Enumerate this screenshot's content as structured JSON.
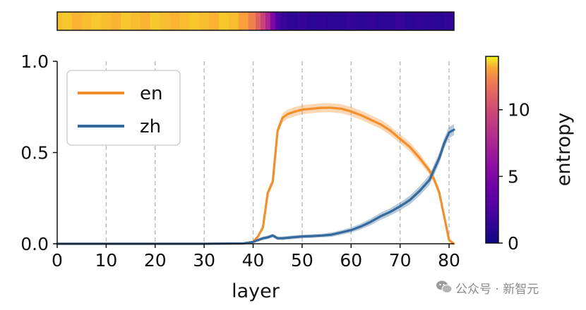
{
  "chart_data": [
    {
      "type": "heatmap",
      "description_role": "entropy strip over layers",
      "x": [
        0,
        2,
        4,
        6,
        8,
        10,
        12,
        14,
        16,
        18,
        20,
        22,
        24,
        26,
        28,
        30,
        32,
        34,
        36,
        38,
        40,
        41,
        42,
        43,
        44,
        45,
        46,
        48,
        50,
        52,
        54,
        56,
        58,
        60,
        62,
        64,
        66,
        68,
        70,
        72,
        74,
        76,
        78,
        80
      ],
      "values": [
        13.4,
        13.5,
        13.3,
        13.4,
        13.5,
        13.4,
        13.3,
        13.5,
        13.4,
        13.3,
        13.5,
        13.4,
        13.3,
        13.4,
        13.5,
        13.4,
        13.3,
        13.5,
        13.4,
        13.0,
        12.2,
        11.0,
        9.5,
        7.5,
        5.0,
        2.5,
        1.6,
        1.3,
        1.5,
        1.2,
        1.4,
        1.1,
        1.3,
        1.5,
        1.2,
        1.4,
        1.1,
        1.3,
        1.6,
        1.2,
        1.4,
        1.3,
        1.1,
        1.4
      ],
      "colorbar": {
        "label": "entropy",
        "ticks": [
          0,
          5,
          10
        ],
        "tick_labels": [
          "0",
          "5",
          "10"
        ],
        "range": [
          0,
          14
        ],
        "colormap": "plasma"
      }
    },
    {
      "type": "line",
      "xlabel": "layer",
      "ylabel": "",
      "xlim": [
        0,
        81
      ],
      "ylim": [
        0,
        1.0
      ],
      "xticks": [
        0,
        10,
        20,
        30,
        40,
        50,
        60,
        70,
        80
      ],
      "xtick_labels": [
        "0",
        "10",
        "20",
        "30",
        "40",
        "50",
        "60",
        "70",
        "80"
      ],
      "yticks": [
        0.0,
        0.5,
        1.0
      ],
      "ytick_labels": [
        "0.0",
        "0.5",
        "1.0"
      ],
      "vertical_grid": true,
      "legend_position": "top-left",
      "series": [
        {
          "name": "en",
          "color": "#f28e2b",
          "x": [
            0,
            10,
            20,
            30,
            38,
            40,
            41,
            42,
            43,
            44,
            45,
            46,
            47,
            48,
            50,
            52,
            54,
            56,
            58,
            60,
            62,
            64,
            66,
            68,
            70,
            72,
            74,
            76,
            77,
            78,
            79,
            80,
            81
          ],
          "y": [
            0,
            0,
            0,
            0,
            0.002,
            0.01,
            0.04,
            0.09,
            0.28,
            0.34,
            0.62,
            0.69,
            0.71,
            0.72,
            0.735,
            0.74,
            0.745,
            0.745,
            0.74,
            0.725,
            0.705,
            0.68,
            0.655,
            0.62,
            0.575,
            0.53,
            0.47,
            0.4,
            0.35,
            0.28,
            0.15,
            0.02,
            0.0
          ],
          "band": [
            0,
            0,
            0,
            0,
            0.002,
            0.005,
            0.01,
            0.015,
            0.02,
            0.02,
            0.02,
            0.025,
            0.025,
            0.025,
            0.025,
            0.025,
            0.025,
            0.025,
            0.025,
            0.025,
            0.025,
            0.025,
            0.025,
            0.025,
            0.025,
            0.025,
            0.025,
            0.02,
            0.02,
            0.02,
            0.015,
            0.01,
            0.005
          ]
        },
        {
          "name": "zh",
          "color": "#35689b",
          "x": [
            0,
            10,
            20,
            30,
            38,
            40,
            41,
            42,
            43,
            44,
            45,
            46,
            48,
            50,
            52,
            54,
            56,
            58,
            60,
            62,
            64,
            66,
            68,
            70,
            72,
            74,
            76,
            77,
            78,
            79,
            80,
            81
          ],
          "y": [
            0,
            0,
            0,
            0,
            0.002,
            0.01,
            0.02,
            0.03,
            0.035,
            0.045,
            0.03,
            0.03,
            0.035,
            0.04,
            0.042,
            0.045,
            0.05,
            0.062,
            0.075,
            0.095,
            0.12,
            0.15,
            0.175,
            0.205,
            0.24,
            0.29,
            0.35,
            0.41,
            0.47,
            0.55,
            0.61,
            0.625
          ],
          "band": [
            0,
            0,
            0,
            0,
            0.002,
            0.005,
            0.008,
            0.01,
            0.01,
            0.01,
            0.01,
            0.01,
            0.01,
            0.01,
            0.01,
            0.01,
            0.012,
            0.012,
            0.014,
            0.016,
            0.018,
            0.02,
            0.02,
            0.022,
            0.024,
            0.026,
            0.028,
            0.03,
            0.03,
            0.03,
            0.03,
            0.03
          ]
        }
      ]
    }
  ],
  "watermark": {
    "text": "公众号 · 新智元",
    "icon": "wechat-icon"
  }
}
